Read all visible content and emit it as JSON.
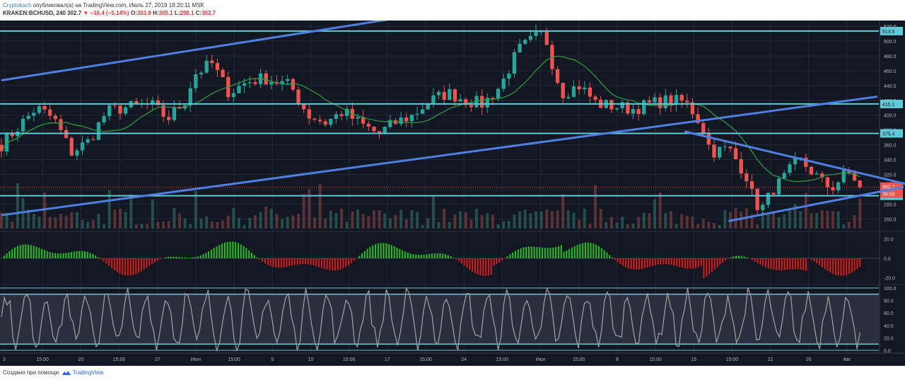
{
  "header": {
    "author": "Cryptokach",
    "published_text": "опубликовал(а) на TradingView.com, Июль 27, 2019 18:20:11 MSK",
    "symbol": "KRAKEN:BCHUSD, 240",
    "last": "302.7",
    "change": "−16.4 (−5.14%)",
    "o_label": "O:",
    "o_val": "303.8",
    "h_label": "H:",
    "h_val": "305.1",
    "l_label": "L:",
    "l_val": "298.1",
    "c_label": "C:",
    "c_val": "302.7"
  },
  "footer": {
    "created_text": "Создано при помощи",
    "brand": "TradingView"
  },
  "colors": {
    "background": "#131722",
    "grid": "#1f2a3a",
    "up": "#26a69a",
    "down": "#ef5350",
    "trend": "#4f80e1",
    "level": "#5fc9d8",
    "ma": "#2ea043",
    "stoch": "#9a9a9a"
  },
  "chart_data": {
    "type": "candlestick",
    "x_labels": [
      "3",
      "15:00",
      "20",
      "15:00",
      "27",
      "Июн",
      "15:00",
      "5",
      "10",
      "15:00",
      "17",
      "15:00",
      "24",
      "15:00",
      "Июл",
      "15:00",
      "8",
      "15:00",
      "15",
      "15:00",
      "22",
      "26",
      "Авг"
    ],
    "y_ticks": [
      "520.0",
      "500.0",
      "480.0",
      "460.0",
      "440.0",
      "420.0",
      "400.0",
      "380.0",
      "360.0",
      "340.0",
      "320.0",
      "300.0",
      "280.0",
      "260.0"
    ],
    "ylim": [
      245,
      522
    ],
    "price_path": [
      [
        0,
        360
      ],
      [
        2,
        385
      ],
      [
        4,
        410
      ],
      [
        6,
        395
      ],
      [
        8,
        350
      ],
      [
        10,
        365
      ],
      [
        12,
        405
      ],
      [
        14,
        410
      ],
      [
        17,
        415
      ],
      [
        19,
        395
      ],
      [
        21,
        420
      ],
      [
        22,
        455
      ],
      [
        24,
        470
      ],
      [
        26,
        430
      ],
      [
        28,
        445
      ],
      [
        30,
        450
      ],
      [
        33,
        440
      ],
      [
        35,
        400
      ],
      [
        37,
        390
      ],
      [
        39,
        405
      ],
      [
        41,
        388
      ],
      [
        43,
        375
      ],
      [
        45,
        390
      ],
      [
        47,
        400
      ],
      [
        49,
        420
      ],
      [
        51,
        430
      ],
      [
        53,
        420
      ],
      [
        55,
        415
      ],
      [
        57,
        440
      ],
      [
        59,
        488
      ],
      [
        61,
        505
      ],
      [
        62,
        510
      ],
      [
        63,
        465
      ],
      [
        64,
        430
      ],
      [
        66,
        440
      ],
      [
        68,
        415
      ],
      [
        70,
        412
      ],
      [
        72,
        408
      ],
      [
        74,
        415
      ],
      [
        76,
        420
      ],
      [
        78,
        418
      ],
      [
        79,
        404
      ],
      [
        80,
        385
      ],
      [
        81,
        350
      ],
      [
        83,
        355
      ],
      [
        85,
        320
      ],
      [
        86,
        280
      ],
      [
        87,
        275
      ],
      [
        88,
        300
      ],
      [
        89,
        310
      ],
      [
        90,
        325
      ],
      [
        91,
        340
      ],
      [
        92,
        330
      ],
      [
        93,
        318
      ],
      [
        94,
        305
      ],
      [
        95,
        303
      ],
      [
        96,
        318
      ],
      [
        97,
        322
      ],
      [
        98,
        302.7
      ]
    ],
    "horizontal_levels": [
      {
        "price": 513.5,
        "label": "513.5"
      },
      {
        "price": 415.1,
        "label": "415.1"
      },
      {
        "price": 375.4,
        "label": "375.4"
      },
      {
        "price": 291.2,
        "label": "291.2"
      }
    ],
    "last_price": {
      "price": 302.7,
      "label": "302.7",
      "countdown": "39:50"
    },
    "trend_lines": [
      {
        "from": [
          0,
          447
        ],
        "to": [
          50,
          540
        ]
      },
      {
        "from": [
          0,
          265
        ],
        "to": [
          100,
          425
        ]
      },
      {
        "from": [
          78,
          378
        ],
        "to": [
          104,
          305
        ]
      },
      {
        "from": [
          83,
          257
        ],
        "to": [
          103,
          303
        ]
      }
    ],
    "macd": {
      "ticks": [
        "20.0",
        "0.0",
        "-20.0"
      ],
      "ylim": [
        -26,
        26
      ]
    },
    "stochastic": {
      "ticks": [
        "100.0",
        "80.0",
        "60.0",
        "40.0",
        "20.0",
        "0.0"
      ],
      "ylim": [
        0,
        100
      ],
      "levels": [
        90,
        10
      ]
    }
  }
}
